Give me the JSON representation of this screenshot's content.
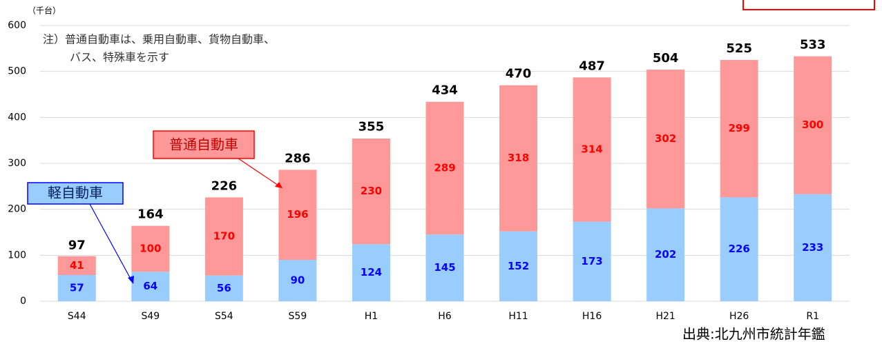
{
  "chart_data": {
    "type": "stacked-bar",
    "unit_label": "（千台）",
    "note": [
      "注）普通自動車は、乗用自動車、貨物自動車、",
      "バス、特殊車を示す"
    ],
    "source": "出典:北九州市統計年鑑",
    "categories": [
      "S44",
      "S49",
      "S54",
      "S59",
      "H1",
      "H6",
      "H11",
      "H16",
      "H21",
      "H26",
      "R1"
    ],
    "series": [
      {
        "name": "軽自動車",
        "color": "#99ccff",
        "label_color": "#0000ff",
        "values": [
          57,
          64,
          56,
          90,
          124,
          145,
          152,
          173,
          202,
          226,
          233
        ]
      },
      {
        "name": "普通自動車",
        "color": "#ff9999",
        "label_color": "#ff0000",
        "values": [
          41,
          100,
          170,
          196,
          230,
          289,
          318,
          314,
          302,
          299,
          300
        ]
      }
    ],
    "totals": [
      97,
      164,
      226,
      286,
      355,
      434,
      470,
      487,
      504,
      525,
      533
    ],
    "ylim": [
      0,
      600
    ],
    "yticks": [
      0,
      100,
      200,
      300,
      400,
      500,
      600
    ],
    "grid": true
  }
}
